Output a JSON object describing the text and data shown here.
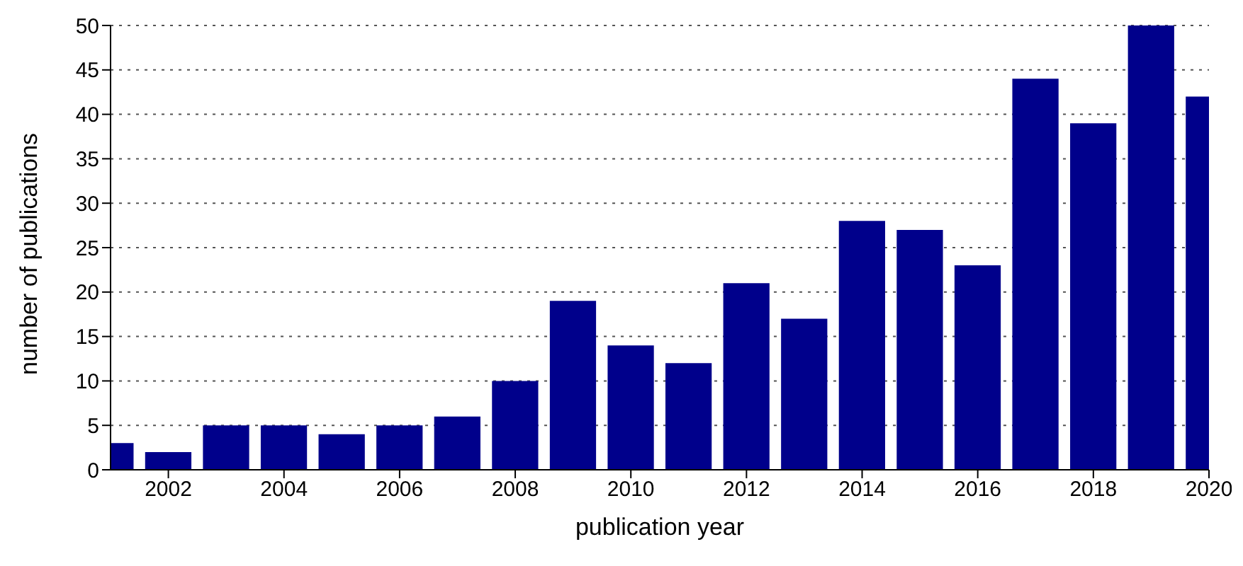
{
  "chart_data": {
    "type": "bar",
    "xlabel": "publication year",
    "ylabel": "number of publications",
    "x": [
      2001,
      2002,
      2003,
      2004,
      2005,
      2006,
      2007,
      2008,
      2009,
      2010,
      2011,
      2012,
      2013,
      2014,
      2015,
      2016,
      2017,
      2018,
      2019,
      2020
    ],
    "values": [
      3,
      2,
      5,
      5,
      4,
      5,
      6,
      10,
      19,
      14,
      12,
      21,
      17,
      28,
      27,
      23,
      44,
      39,
      50,
      42
    ],
    "color": "#00008b",
    "xlim": [
      2001,
      2020
    ],
    "xticks": [
      2002,
      2004,
      2006,
      2008,
      2010,
      2012,
      2014,
      2016,
      2018,
      2020
    ],
    "ylim": [
      0,
      50
    ],
    "yticks": [
      0,
      5,
      10,
      15,
      20,
      25,
      30,
      35,
      40,
      45,
      50
    ],
    "grid": "y"
  }
}
